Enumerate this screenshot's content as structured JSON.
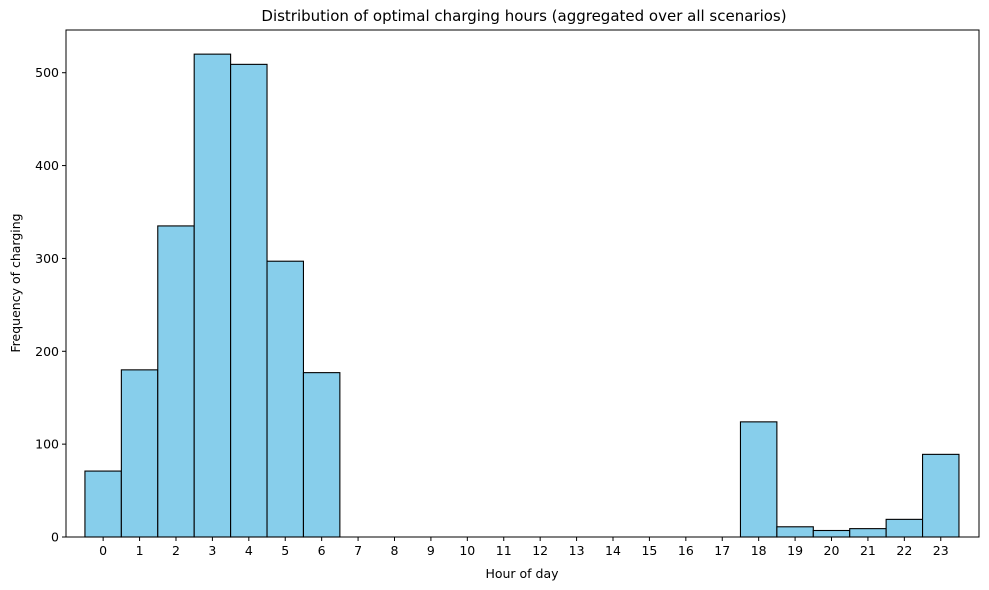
{
  "chart_data": {
    "type": "bar",
    "title": "Distribution of optimal charging hours (aggregated over all scenarios)",
    "xlabel": "Hour of day",
    "ylabel": "Frequency of charging",
    "categories": [
      "0",
      "1",
      "2",
      "3",
      "4",
      "5",
      "6",
      "7",
      "8",
      "9",
      "10",
      "11",
      "12",
      "13",
      "14",
      "15",
      "16",
      "17",
      "18",
      "19",
      "20",
      "21",
      "22",
      "23"
    ],
    "values": [
      71,
      180,
      335,
      520,
      509,
      297,
      177,
      0,
      0,
      0,
      0,
      0,
      0,
      0,
      0,
      0,
      0,
      0,
      124,
      11,
      7,
      9,
      19,
      89
    ],
    "ylim": [
      0,
      546
    ],
    "yticks": [
      0,
      100,
      200,
      300,
      400,
      500
    ],
    "grid": false,
    "bar_color": "#87ceeb",
    "edge_color": "#000000"
  }
}
